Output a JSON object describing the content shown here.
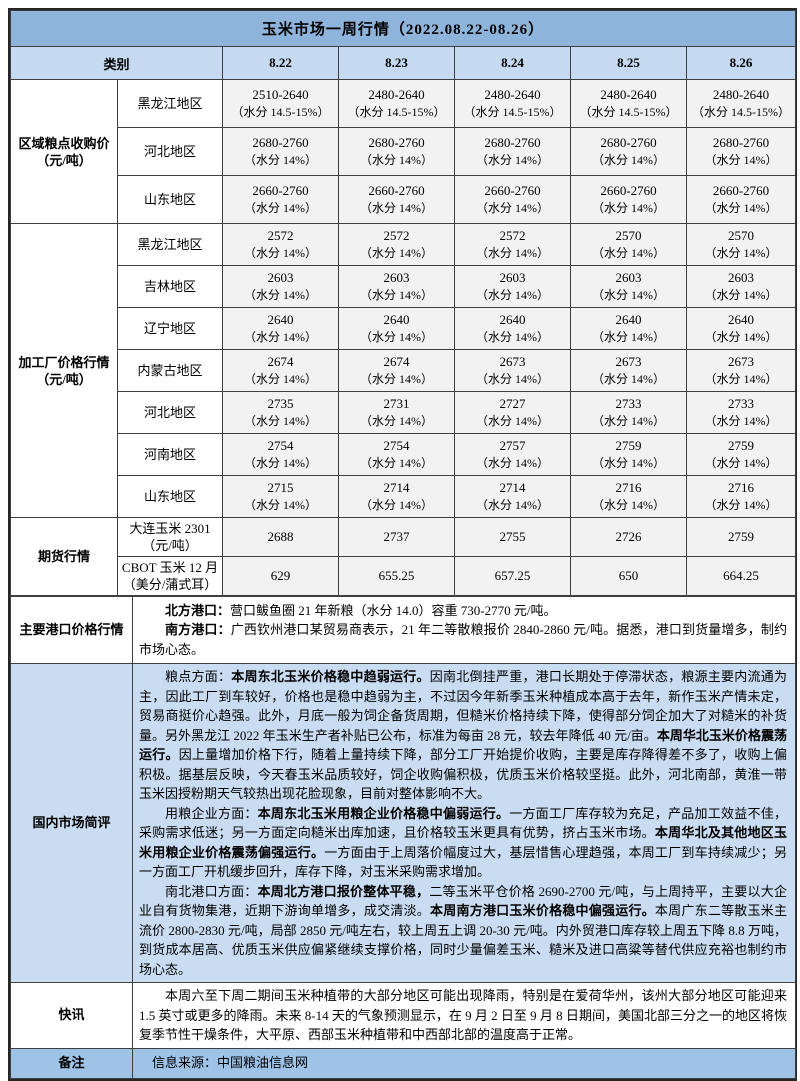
{
  "title": "玉米市场一周行情（2022.08.22-08.26）",
  "header": {
    "category": "类别",
    "dates": [
      "8.22",
      "8.23",
      "8.24",
      "8.25",
      "8.26"
    ]
  },
  "regional": {
    "label_line1": "区域粮点收购价",
    "label_line2": "（元/吨）",
    "rows": [
      {
        "region": "黑龙江地区",
        "moisture": "（水分 14.5-15%）",
        "values": [
          "2510-2640",
          "2480-2640",
          "2480-2640",
          "2480-2640",
          "2480-2640"
        ]
      },
      {
        "region": "河北地区",
        "moisture": "（水分 14%）",
        "values": [
          "2680-2760",
          "2680-2760",
          "2680-2760",
          "2680-2760",
          "2680-2760"
        ]
      },
      {
        "region": "山东地区",
        "moisture": "（水分 14%）",
        "values": [
          "2660-2760",
          "2660-2760",
          "2660-2760",
          "2660-2760",
          "2660-2760"
        ]
      }
    ]
  },
  "processing": {
    "label_line1": "加工厂价格行情",
    "label_line2": "（元/吨）",
    "rows": [
      {
        "region": "黑龙江地区",
        "moisture": "（水分 14%）",
        "values": [
          "2572",
          "2572",
          "2572",
          "2570",
          "2570"
        ]
      },
      {
        "region": "吉林地区",
        "moisture": "（水分 14%）",
        "values": [
          "2603",
          "2603",
          "2603",
          "2603",
          "2603"
        ]
      },
      {
        "region": "辽宁地区",
        "moisture": "（水分 14%）",
        "values": [
          "2640",
          "2640",
          "2640",
          "2640",
          "2640"
        ]
      },
      {
        "region": "内蒙古地区",
        "moisture": "（水分 14%）",
        "values": [
          "2674",
          "2674",
          "2673",
          "2673",
          "2673"
        ]
      },
      {
        "region": "河北地区",
        "moisture": "（水分 14%）",
        "values": [
          "2735",
          "2731",
          "2727",
          "2733",
          "2733"
        ]
      },
      {
        "region": "河南地区",
        "moisture": "（水分 14%）",
        "values": [
          "2754",
          "2754",
          "2757",
          "2759",
          "2759"
        ]
      },
      {
        "region": "山东地区",
        "moisture": "（水分 14%）",
        "values": [
          "2715",
          "2714",
          "2714",
          "2716",
          "2716"
        ]
      }
    ]
  },
  "futures": {
    "label": "期货行情",
    "rows": [
      {
        "name_line1": "大连玉米 2301",
        "name_line2": "（元/吨）",
        "values": [
          "2688",
          "2737",
          "2755",
          "2726",
          "2759"
        ]
      },
      {
        "name_line1": "CBOT 玉米 12 月",
        "name_line2": "（美分/蒲式耳）",
        "values": [
          "629",
          "655.25",
          "657.25",
          "650",
          "664.25"
        ]
      }
    ]
  },
  "ports": {
    "label": "主要港口价格行情",
    "p1": [
      {
        "t": "北方港口：",
        "b": true
      },
      {
        "t": "营口鲅鱼圈 21 年新粮（水分 14.0）容重 730-2770 元/吨。",
        "b": false
      }
    ],
    "p2": [
      {
        "t": "南方港口：",
        "b": true
      },
      {
        "t": "广西钦州港口某贸易商表示，21 年二等散粮报价 2840-2860 元/吨。据悉，港口到货量增多，制约市场心态。",
        "b": false
      }
    ]
  },
  "review": {
    "label": "国内市场简评",
    "p1": [
      {
        "t": "粮点方面：",
        "b": false
      },
      {
        "t": "本周东北玉米价格稳中趋弱运行。",
        "b": true
      },
      {
        "t": "因南北倒挂严重，港口长期处于停滞状态，粮源主要内流通为主，因此工厂到车较好，价格也是稳中趋弱为主，不过因今年新季玉米种植成本高于去年，新作玉米产情未定，贸易商挺价心趋强。此外，月底一般为饲企备货周期，但糙米价格持续下降，使得部分饲企加大了对糙米的补货量。另外黑龙江 2022 年玉米生产者补贴已公布，标准为每亩 28 元，较去年降低 40 元/亩。",
        "b": false
      },
      {
        "t": "本周华北玉米价格震荡运行。",
        "b": true
      },
      {
        "t": "因上量增加价格下行，随着上量持续下降，部分工厂开始提价收购，主要是库存降得差不多了，收购上偏积极。据基层反映，今天春玉米品质较好，饲企收购偏积极，优质玉米价格较坚挺。此外，河北南部，黄淮一带玉米因授粉期天气较热出现花脸现象，目前对整体影响不大。",
        "b": false
      }
    ],
    "p2": [
      {
        "t": "用粮企业方面：",
        "b": false
      },
      {
        "t": "本周东北玉米用粮企业价格稳中偏弱运行。",
        "b": true
      },
      {
        "t": "一方面工厂库存较为充足，产品加工效益不佳，采购需求低迷；另一方面定向糙米出库加速，且价格较玉米更具有优势，挤占玉米市场。",
        "b": false
      },
      {
        "t": "本周华北及其他地区玉米用粮企业价格震荡偏强运行。",
        "b": true
      },
      {
        "t": "一方面由于上周落价幅度过大，基层惜售心理趋强，本周工厂到车持续减少；另一方面工厂开机缓步回升，库存下降，对玉米采购需求增加。",
        "b": false
      }
    ],
    "p3": [
      {
        "t": "南北港口方面：",
        "b": false
      },
      {
        "t": "本周北方港口报价整体平稳，",
        "b": true
      },
      {
        "t": "二等玉米平仓价格 2690-2700 元/吨，与上周持平，主要以大企业自有货物集港，近期下游询单增多，成交清淡。",
        "b": false
      },
      {
        "t": "本周南方港口玉米价格稳中偏强运行。",
        "b": true
      },
      {
        "t": "本周广东二等散玉米主流价 2800-2830 元/吨，局部 2850 元/吨左右，较上周五上调 20-30 元/吨。内外贸港口库存较上周五下降 8.8 万吨，到货成本居高、优质玉米供应偏紧继续支撑价格，同时少量偏差玉米、糙米及进口高粱等替代供应充裕也制约市场心态。",
        "b": false
      }
    ]
  },
  "flash": {
    "label": "快讯",
    "text": "本周六至下周二期间玉米种植带的大部分地区可能出现降雨，特别是在爱荷华州，该州大部分地区可能迎来 1.5 英寸或更多的降雨。未来 8-14 天的气象预测显示，在 9 月 2 日至 9 月 8 日期间，美国北部三分之一的地区将恢复季节性干燥条件，大平原、西部玉米种植带和中西部北部的温度高于正常。"
  },
  "note": {
    "label": "备注",
    "text": "信息来源：中国粮油信息网"
  },
  "colors": {
    "title_bg": "#8FB4DC",
    "header_bg": "#C5D9F1",
    "review_bg": "#C9DCF1",
    "note_bg": "#9FC3E7",
    "data_cell_bg": "#F2F2F2",
    "border": "#3F3F3F"
  }
}
